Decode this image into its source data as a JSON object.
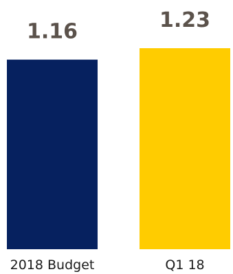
{
  "chart_data": {
    "type": "bar",
    "categories": [
      "2018 Budget",
      "Q1 18"
    ],
    "values": [
      1.16,
      1.23
    ],
    "data_labels": [
      "1.16",
      "1.23"
    ],
    "colors": [
      "#06215f",
      "#ffcc00"
    ],
    "value_label_color": "#5b524b",
    "ylim": [
      0,
      1.23
    ],
    "grid": false,
    "axes_visible": false,
    "legend": "none"
  }
}
